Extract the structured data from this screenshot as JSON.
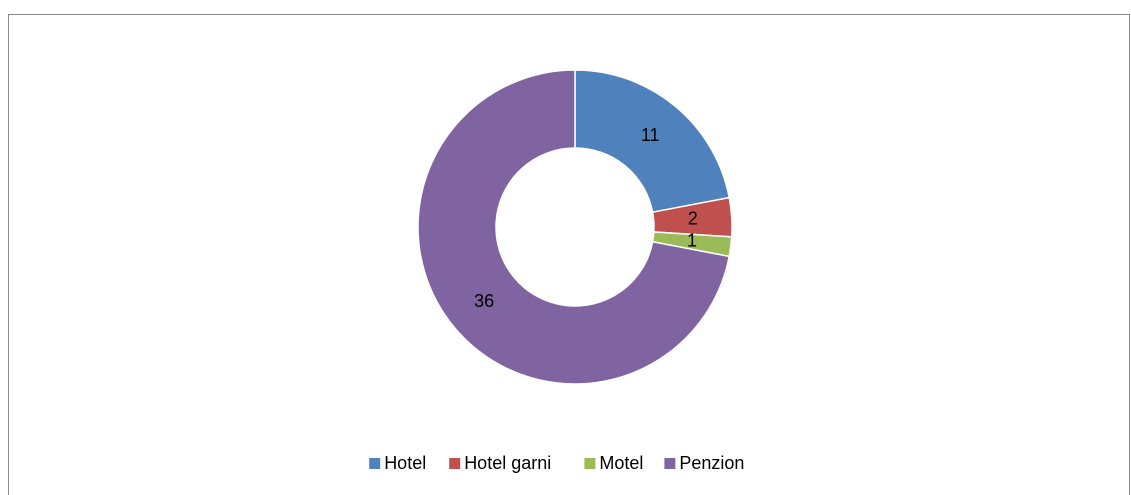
{
  "chart_data": {
    "type": "donut",
    "categories": [
      "Hotel",
      "Hotel garni",
      "Motel",
      "Penzion"
    ],
    "values": [
      11,
      2,
      1,
      36
    ],
    "colors": [
      "#4f81bd",
      "#c0504d",
      "#9bbb59",
      "#8064a2"
    ],
    "legend": "bottom"
  }
}
